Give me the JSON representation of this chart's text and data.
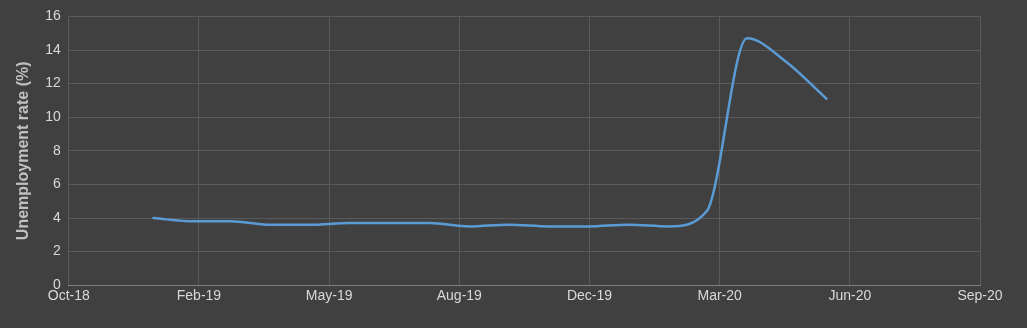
{
  "chart_data": {
    "type": "line",
    "ylabel": "Unemployment rate (%)",
    "x": [
      "2019-01-01",
      "2019-02-01",
      "2019-03-01",
      "2019-04-01",
      "2019-05-01",
      "2019-06-01",
      "2019-07-01",
      "2019-08-01",
      "2019-09-01",
      "2019-10-01",
      "2019-11-01",
      "2019-12-01",
      "2020-01-01",
      "2020-02-01",
      "2020-03-01",
      "2020-04-01",
      "2020-05-01",
      "2020-06-01"
    ],
    "series": [
      {
        "color": "#5b9bd5",
        "values": [
          4.0,
          3.8,
          3.8,
          3.6,
          3.6,
          3.7,
          3.7,
          3.7,
          3.5,
          3.6,
          3.5,
          3.5,
          3.6,
          3.5,
          4.4,
          14.7,
          13.3,
          11.1
        ]
      }
    ],
    "xlim": [
      "2018-10-28",
      "2020-09-27"
    ],
    "xticks": [
      {
        "value": "2018-10-28",
        "label": "Oct-18"
      },
      {
        "value": "2019-02-05",
        "label": "Feb-19"
      },
      {
        "value": "2019-05-16",
        "label": "May-19"
      },
      {
        "value": "2019-08-24",
        "label": "Aug-19"
      },
      {
        "value": "2019-12-02",
        "label": "Dec-19"
      },
      {
        "value": "2020-03-11",
        "label": "Mar-20"
      },
      {
        "value": "2020-06-19",
        "label": "Jun-20"
      },
      {
        "value": "2020-09-27",
        "label": "Sep-20"
      }
    ],
    "ylim": [
      0,
      16
    ],
    "yticks": [
      0,
      2,
      4,
      6,
      8,
      10,
      12,
      14,
      16
    ],
    "grid": true,
    "marker": "none",
    "line_style": "solid"
  }
}
